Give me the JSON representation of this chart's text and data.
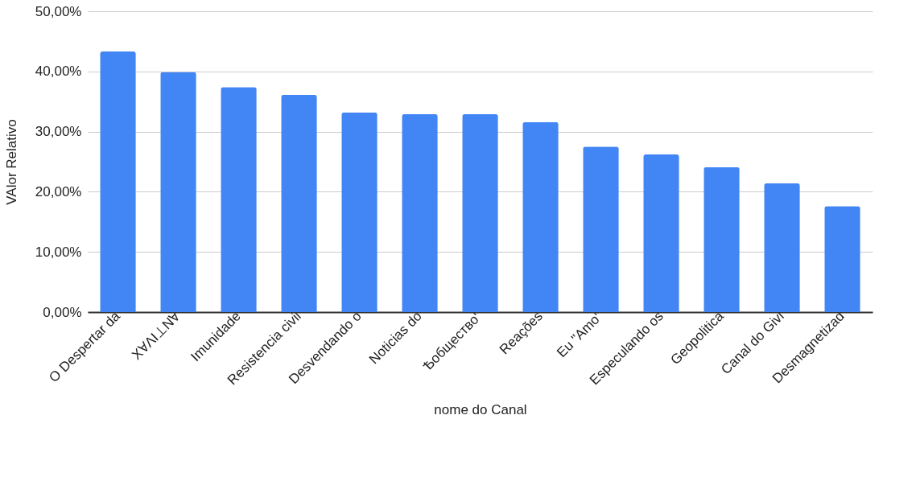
{
  "chart_data": {
    "type": "bar",
    "xlabel": "nome do Canal",
    "ylabel": "VAlor Relativo",
    "categories": [
      "O Despertar da",
      "XⱯΛI⊥NⱯ",
      "Imunidade",
      "Resistencia civil",
      "Desvendando o",
      "Noticias do",
      "Ѣобщество\"",
      "Reações",
      "Eu \"Amo\"",
      "Especulando os",
      "Geopolitica",
      "Canal do Givi",
      "Desmagnetizad"
    ],
    "values": [
      43.3,
      39.9,
      37.4,
      36.1,
      33.2,
      32.9,
      32.9,
      31.6,
      27.5,
      26.2,
      24.1,
      21.4,
      17.6
    ],
    "color": "#4285f4",
    "ylim": [
      0,
      50
    ],
    "yticks": [
      {
        "value": 0,
        "label": "0,00%"
      },
      {
        "value": 10,
        "label": "10,00%"
      },
      {
        "value": 20,
        "label": "20,00%"
      },
      {
        "value": 30,
        "label": "30,00%"
      },
      {
        "value": 40,
        "label": "40,00%"
      },
      {
        "value": 50,
        "label": "50,00%"
      }
    ],
    "grid": "y"
  }
}
